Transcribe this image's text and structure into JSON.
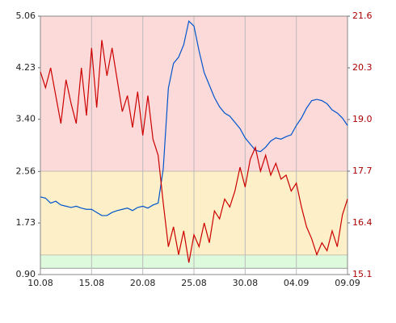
{
  "chart_data": {
    "type": "line",
    "x": [
      0,
      0.5,
      1,
      1.5,
      2,
      2.5,
      3,
      3.5,
      4,
      4.5,
      5,
      5.5,
      6,
      6.5,
      7,
      7.5,
      8,
      8.5,
      9,
      9.5,
      10,
      10.5,
      11,
      11.5,
      12,
      12.5,
      13,
      13.5,
      14,
      14.5,
      15,
      15.5,
      16,
      16.5,
      17,
      17.5,
      18,
      18.5,
      19,
      19.5,
      20,
      20.5,
      21,
      21.5,
      22,
      22.5,
      23,
      23.5,
      24,
      24.5,
      25,
      25.5,
      26,
      26.5,
      27,
      27.5,
      28,
      28.5,
      29,
      29.5,
      30
    ],
    "series": [
      {
        "color": "#0055cc",
        "axis": "y",
        "values": [
          2.15,
          2.13,
          2.05,
          2.08,
          2.02,
          2.0,
          1.98,
          2.0,
          1.97,
          1.95,
          1.95,
          1.9,
          1.85,
          1.85,
          1.9,
          1.93,
          1.95,
          1.97,
          1.93,
          1.98,
          2.0,
          1.97,
          2.02,
          2.05,
          2.6,
          3.9,
          4.3,
          4.4,
          4.6,
          4.98,
          4.9,
          4.5,
          4.15,
          3.95,
          3.75,
          3.6,
          3.5,
          3.45,
          3.35,
          3.25,
          3.1,
          3.0,
          2.9,
          2.88,
          2.95,
          3.05,
          3.1,
          3.08,
          3.12,
          3.15,
          3.3,
          3.42,
          3.58,
          3.7,
          3.72,
          3.7,
          3.65,
          3.55,
          3.5,
          3.42,
          3.3
        ]
      },
      {
        "color": "#cc0000",
        "axis": "y2",
        "values": [
          20.2,
          19.8,
          20.3,
          19.6,
          18.9,
          20.0,
          19.4,
          18.9,
          20.3,
          19.1,
          20.8,
          19.3,
          21.0,
          20.1,
          20.8,
          20.0,
          19.2,
          19.6,
          18.8,
          19.7,
          18.6,
          19.6,
          18.5,
          18.1,
          16.9,
          15.8,
          16.3,
          15.6,
          16.2,
          15.4,
          16.1,
          15.8,
          16.4,
          15.9,
          16.7,
          16.5,
          17.0,
          16.8,
          17.2,
          17.8,
          17.3,
          18.0,
          18.3,
          17.7,
          18.1,
          17.6,
          17.9,
          17.5,
          17.6,
          17.2,
          17.4,
          16.8,
          16.3,
          16.0,
          15.6,
          15.9,
          15.7,
          16.2,
          15.8,
          16.6,
          17.0
        ]
      }
    ],
    "xlim": [
      0,
      30
    ],
    "xticks": [
      {
        "value": 0,
        "label": "10.08"
      },
      {
        "value": 5,
        "label": "15.08"
      },
      {
        "value": 10,
        "label": "20.08"
      },
      {
        "value": 15,
        "label": "25.08"
      },
      {
        "value": 20,
        "label": "30.08"
      },
      {
        "value": 25,
        "label": "04.09"
      },
      {
        "value": 30,
        "label": "09.09"
      }
    ],
    "ylim": [
      0.9,
      5.06
    ],
    "yticks": [
      {
        "value": 0.9,
        "label": "0.90"
      },
      1.73,
      2.56,
      {
        "value": 3.4,
        "label": "3.40"
      },
      4.23,
      5.06
    ],
    "y2lim": [
      15.1,
      21.6
    ],
    "y2ticks": [
      15.1,
      16.4,
      17.7,
      {
        "value": 19,
        "label": "19.0"
      },
      20.3,
      21.6
    ],
    "bands": [
      {
        "from": 2.56,
        "to": 5.06,
        "color": "#fddada"
      },
      {
        "from": 1.21,
        "to": 2.56,
        "color": "#fdefc8"
      },
      {
        "from": 1.0,
        "to": 1.21,
        "color": "#ddfadd"
      }
    ],
    "grid": true
  }
}
